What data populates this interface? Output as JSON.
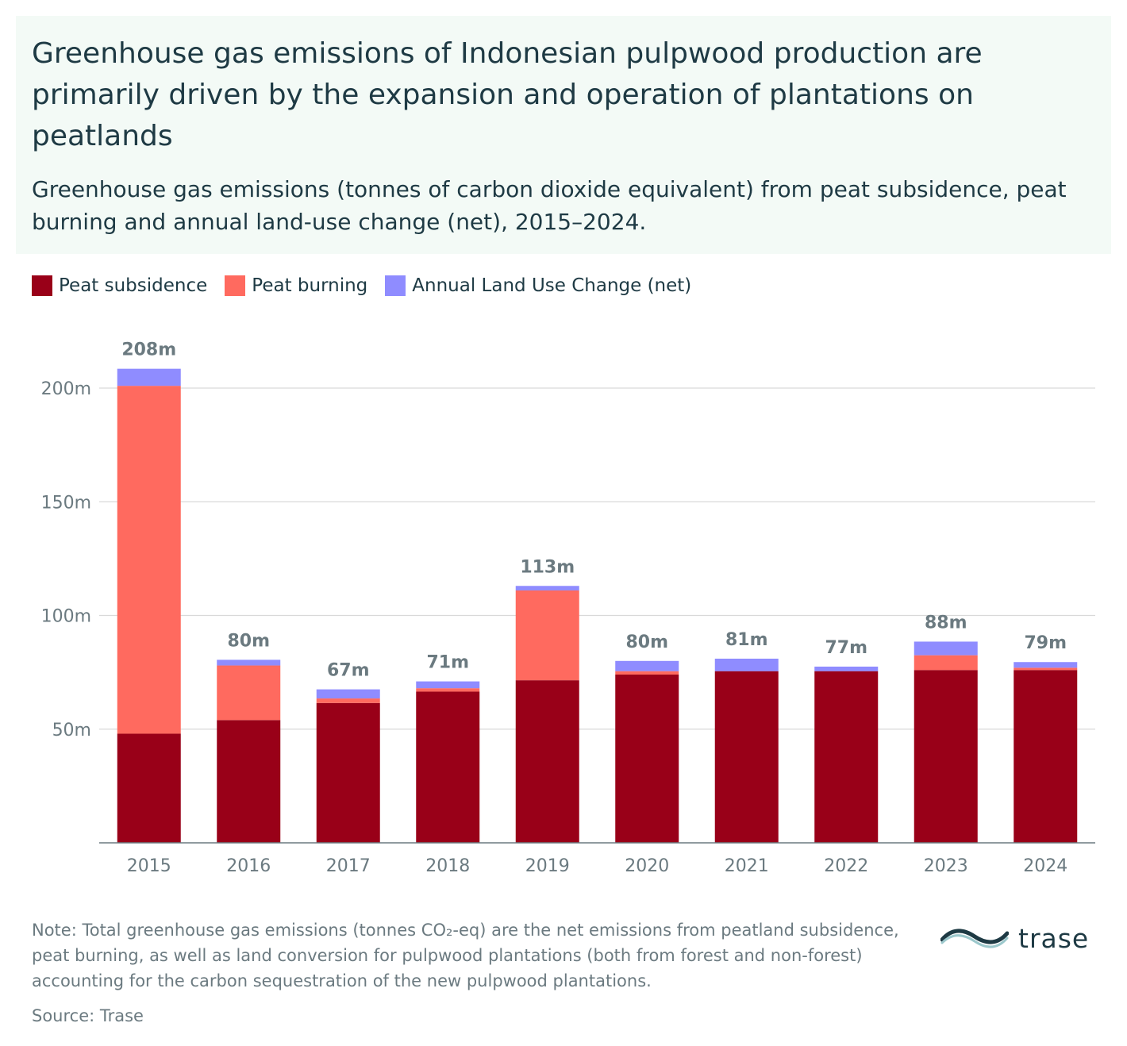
{
  "title": "Greenhouse gas emissions of Indonesian pulpwood production are primarily driven by the expansion and operation of plantations on peatlands",
  "subtitle": "Greenhouse gas emissions (tonnes of carbon dioxide equivalent) from peat subsidence, peat burning and annual land-use change (net), 2015–2024.",
  "legend": [
    {
      "label": "Peat subsidence",
      "color": "#990018"
    },
    {
      "label": "Peat burning",
      "color": "#ff6a5f"
    },
    {
      "label": "Annual Land Use Change (net)",
      "color": "#8f8cff"
    }
  ],
  "chart_data": {
    "type": "bar",
    "stacked": true,
    "categories": [
      "2015",
      "2016",
      "2017",
      "2018",
      "2019",
      "2020",
      "2021",
      "2022",
      "2023",
      "2024"
    ],
    "series": [
      {
        "name": "Peat subsidence",
        "color": "#990018",
        "values": [
          48,
          54,
          61.5,
          66.5,
          71.5,
          74,
          75.5,
          75.5,
          76,
          76
        ]
      },
      {
        "name": "Peat burning",
        "color": "#ff6a5f",
        "values": [
          153,
          24,
          2,
          1.5,
          39.5,
          1.5,
          0,
          0,
          6.5,
          1
        ]
      },
      {
        "name": "Annual Land Use Change (net)",
        "color": "#8f8cff",
        "values": [
          7.5,
          2.5,
          4,
          3,
          2,
          4.5,
          5.5,
          2,
          6,
          2.5
        ]
      }
    ],
    "total_labels": [
      "208m",
      "80m",
      "67m",
      "71m",
      "113m",
      "80m",
      "81m",
      "77m",
      "88m",
      "79m"
    ],
    "y_ticks": [
      {
        "value": 50,
        "label": "50m"
      },
      {
        "value": 100,
        "label": "100m"
      },
      {
        "value": 150,
        "label": "150m"
      },
      {
        "value": 200,
        "label": "200m"
      }
    ],
    "ylim": [
      0,
      210
    ],
    "grid": true,
    "legend_position": "top-left"
  },
  "note": "Note: Total greenhouse gas emissions (tonnes CO₂-eq) are the net emissions from peatland subsidence, peat burning, as well as land conversion for pulpwood plantations (both from forest and non-forest) accounting for the carbon sequestration of the new pulpwood plantations.",
  "source": "Source: Trase",
  "logo": {
    "text": "trase",
    "icon": "trase-wave-icon"
  }
}
